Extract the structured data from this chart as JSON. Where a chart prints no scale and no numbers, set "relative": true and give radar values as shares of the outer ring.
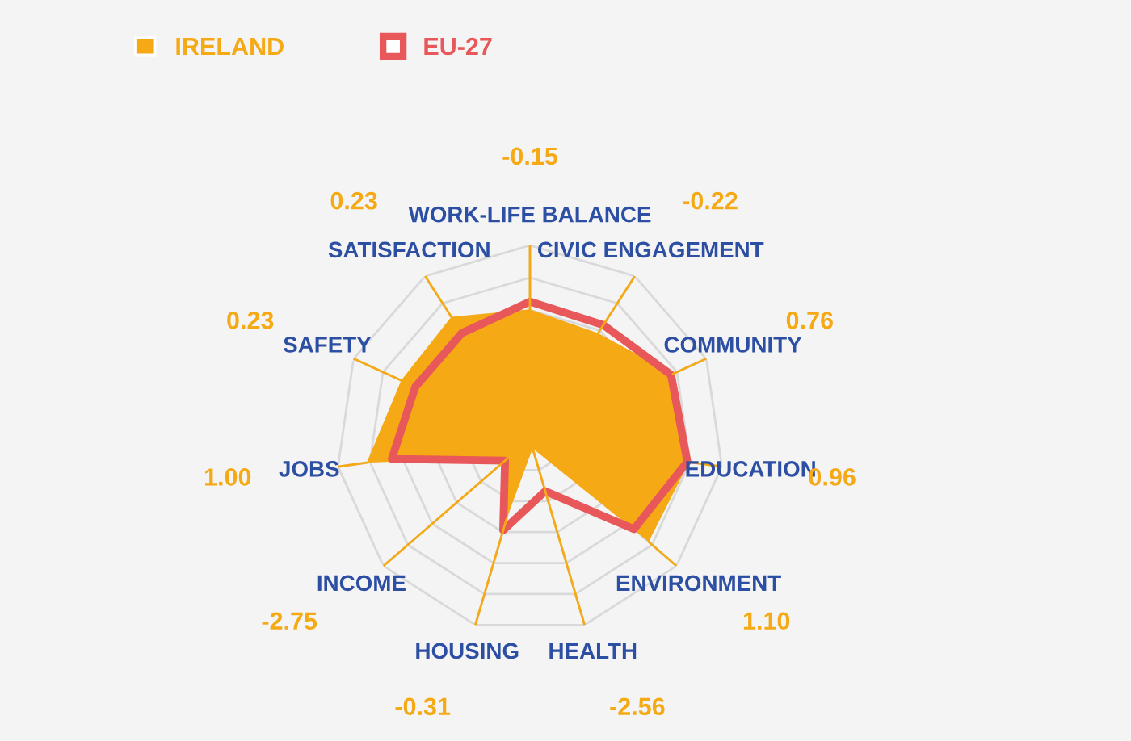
{
  "chart_data": {
    "type": "radar",
    "relative": true,
    "grid": true,
    "legend": "top left",
    "categories": [
      "WORK-LIFE BALANCE",
      "CIVIC ENGAGEMENT",
      "COMMUNITY",
      "EDUCATION",
      "ENVIRONMENT",
      "HEALTH",
      "HOUSING",
      "INCOME",
      "JOBS",
      "SAFETY",
      "SATISFACTION"
    ],
    "series": [
      {
        "name": "IRELAND",
        "color": "#f5a914",
        "type": "area",
        "values": [
          0.67,
          0.65,
          0.81,
          0.83,
          0.81,
          0.05,
          0.43,
          0.15,
          0.85,
          0.73,
          0.75
        ]
      },
      {
        "name": "EU-27",
        "color": "#e8575a",
        "values": [
          0.71,
          0.7,
          0.8,
          0.82,
          0.71,
          0.28,
          0.49,
          0.17,
          0.72,
          0.65,
          0.65
        ]
      }
    ],
    "annotations": [
      {
        "text": "-0.15",
        "x": "WORK-LIFE BALANCE"
      },
      {
        "text": "-0.22",
        "x": "CIVIC ENGAGEMENT"
      },
      {
        "text": "0.76",
        "x": "COMMUNITY"
      },
      {
        "text": "0.96",
        "x": "EDUCATION"
      },
      {
        "text": "1.10",
        "x": "ENVIRONMENT"
      },
      {
        "text": "-2.56",
        "x": "HEALTH"
      },
      {
        "text": "-0.31",
        "x": "HOUSING"
      },
      {
        "text": "-2.75",
        "x": "INCOME"
      },
      {
        "text": "1.00",
        "x": "JOBS"
      },
      {
        "text": "0.23",
        "x": "SAFETY"
      },
      {
        "text": "0.23",
        "x": "SATISFACTION"
      }
    ]
  }
}
